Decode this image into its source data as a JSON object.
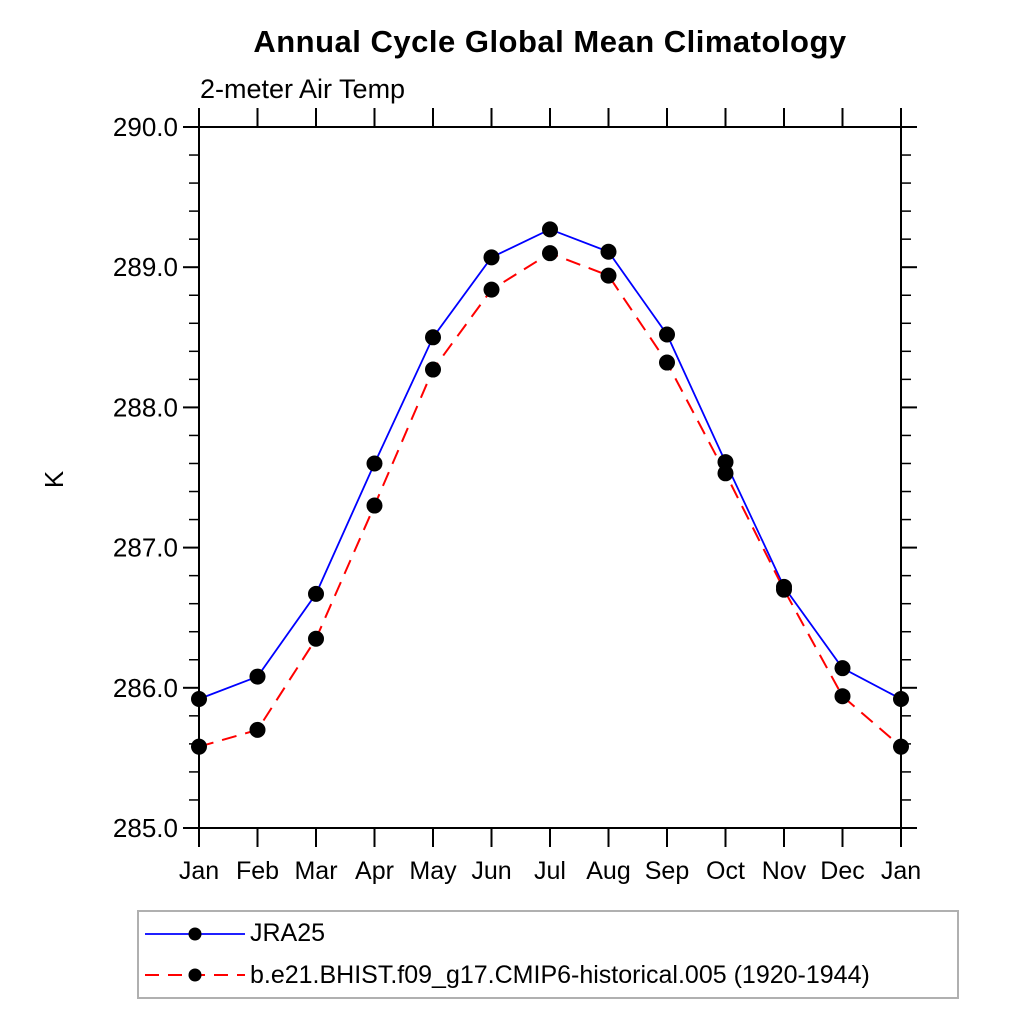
{
  "chart_data": {
    "type": "line",
    "title": "Annual Cycle Global Mean Climatology",
    "subtitle": "2-meter Air Temp",
    "ylabel": "K",
    "xlabel": "",
    "categories": [
      "Jan",
      "Feb",
      "Mar",
      "Apr",
      "May",
      "Jun",
      "Jul",
      "Aug",
      "Sep",
      "Oct",
      "Nov",
      "Dec",
      "Jan"
    ],
    "series": [
      {
        "name": "JRA25",
        "color": "#0000ff",
        "line_style": "solid",
        "marker": "filled-circle",
        "values": [
          285.92,
          286.08,
          286.67,
          287.6,
          288.5,
          289.07,
          289.27,
          289.11,
          288.52,
          287.61,
          286.72,
          286.14,
          285.92
        ]
      },
      {
        "name": "b.e21.BHIST.f09_g17.CMIP6-historical.005 (1920-1944)",
        "color": "#ff0000",
        "line_style": "dashed",
        "marker": "filled-circle",
        "values": [
          285.58,
          285.7,
          286.35,
          287.3,
          288.27,
          288.84,
          289.1,
          288.94,
          288.32,
          287.53,
          286.7,
          285.94,
          285.58
        ]
      }
    ],
    "marker_color": "#000000",
    "ylim": [
      285.0,
      290.0
    ],
    "y_major_ticks": [
      285.0,
      286.0,
      287.0,
      288.0,
      289.0,
      290.0
    ],
    "y_tick_labels": [
      "285.0",
      "286.0",
      "287.0",
      "288.0",
      "289.0",
      "290.0"
    ],
    "y_minor_step": 0.2,
    "grid": false,
    "frame_color": "#000000",
    "legend_border_color": "#b0b0b0",
    "legend_position": "bottom-left"
  }
}
